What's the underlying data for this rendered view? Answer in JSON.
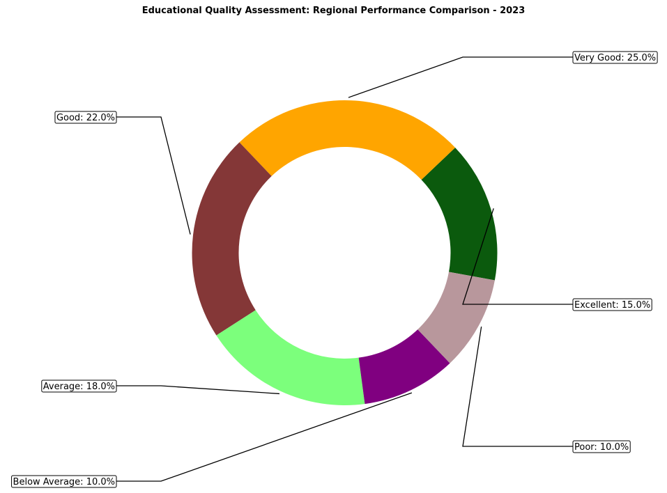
{
  "chart_data": {
    "type": "pie",
    "title": "Educational Quality Assessment: Regional Performance Comparison - 2023",
    "donut": true,
    "slices": [
      {
        "label": "Excellent",
        "value": 15.0,
        "display": "Excellent: 15.0%",
        "color": "#0B5A0D"
      },
      {
        "label": "Very Good",
        "value": 25.0,
        "display": "Very Good: 25.0%",
        "color": "#FFA500"
      },
      {
        "label": "Good",
        "value": 22.0,
        "display": "Good: 22.0%",
        "color": "#843737"
      },
      {
        "label": "Average",
        "value": 18.0,
        "display": "Average: 18.0%",
        "color": "#7CFF7C"
      },
      {
        "label": "Below Average",
        "value": 10.0,
        "display": "Below Average: 10.0%",
        "color": "#800080"
      },
      {
        "label": "Poor",
        "value": 10.0,
        "display": "Poor: 10.0%",
        "color": "#B8979C"
      }
    ]
  }
}
